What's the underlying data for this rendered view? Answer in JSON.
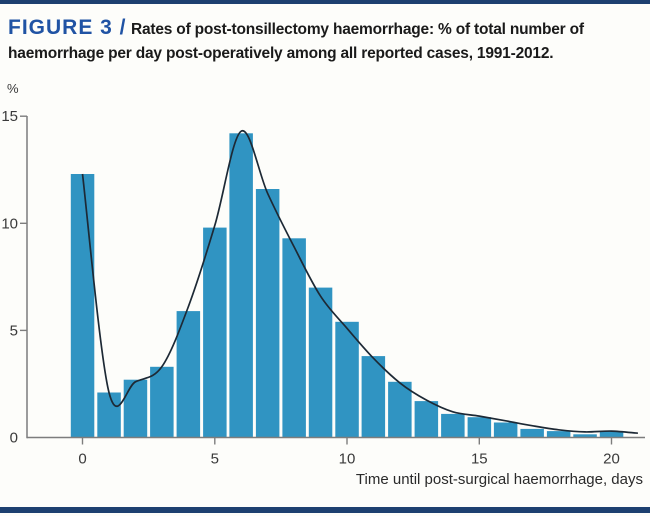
{
  "header": {
    "figure_label": "FIGURE 3 /",
    "title": "Rates of post-tonsillectomy haemorrhage: % of total number of haemorrhage per day post-operatively among all reported cases, 1991-2012."
  },
  "colors": {
    "accent_navy": "#1d4070",
    "figure_label_blue": "#2053a4",
    "bar_fill": "#3094c2",
    "trend_line": "#1d2935",
    "axis": "#7d7d7d"
  },
  "chart_data": {
    "type": "bar",
    "title": "Rates of post-tonsillectomy haemorrhage: % of total number of haemorrhage per day post-operatively among all reported cases, 1991-2012.",
    "xlabel": "Time until post-surgical haemorrhage, days",
    "ylabel": "%",
    "categories": [
      0,
      1,
      2,
      3,
      4,
      5,
      6,
      7,
      8,
      9,
      10,
      11,
      12,
      13,
      14,
      15,
      16,
      17,
      18,
      19,
      20
    ],
    "values": [
      12.3,
      2.1,
      2.7,
      3.3,
      5.9,
      9.8,
      14.2,
      11.6,
      9.3,
      7.0,
      5.4,
      3.8,
      2.6,
      1.7,
      1.1,
      0.95,
      0.7,
      0.4,
      0.3,
      0.15,
      0.3
    ],
    "series": [
      {
        "name": "percent-of-haemorrhages-bars",
        "type": "bar",
        "values": [
          12.3,
          2.1,
          2.7,
          3.3,
          5.9,
          9.8,
          14.2,
          11.6,
          9.3,
          7.0,
          5.4,
          3.8,
          2.6,
          1.7,
          1.1,
          0.95,
          0.7,
          0.4,
          0.3,
          0.15,
          0.3
        ]
      },
      {
        "name": "smoothed-trend-line",
        "type": "line",
        "points": [
          [
            0,
            12.3
          ],
          [
            1,
            2.1
          ],
          [
            2,
            2.6
          ],
          [
            3,
            3.3
          ],
          [
            4,
            6.1
          ],
          [
            5,
            9.9
          ],
          [
            6,
            14.3
          ],
          [
            7,
            11.4
          ],
          [
            8,
            8.9
          ],
          [
            9,
            6.6
          ],
          [
            10,
            5.1
          ],
          [
            11,
            3.7
          ],
          [
            12,
            2.55
          ],
          [
            13,
            1.75
          ],
          [
            14,
            1.2
          ],
          [
            15,
            1.0
          ],
          [
            16,
            0.78
          ],
          [
            17,
            0.55
          ],
          [
            18,
            0.36
          ],
          [
            19,
            0.26
          ],
          [
            20,
            0.3
          ],
          [
            21,
            0.2
          ]
        ]
      }
    ],
    "yticks": [
      0,
      5,
      10,
      15
    ],
    "xticks": [
      0,
      5,
      10,
      15,
      20
    ],
    "ylim": [
      0,
      15
    ],
    "xlim": [
      -2.1,
      21.3
    ],
    "grid": false,
    "legend": "none"
  }
}
